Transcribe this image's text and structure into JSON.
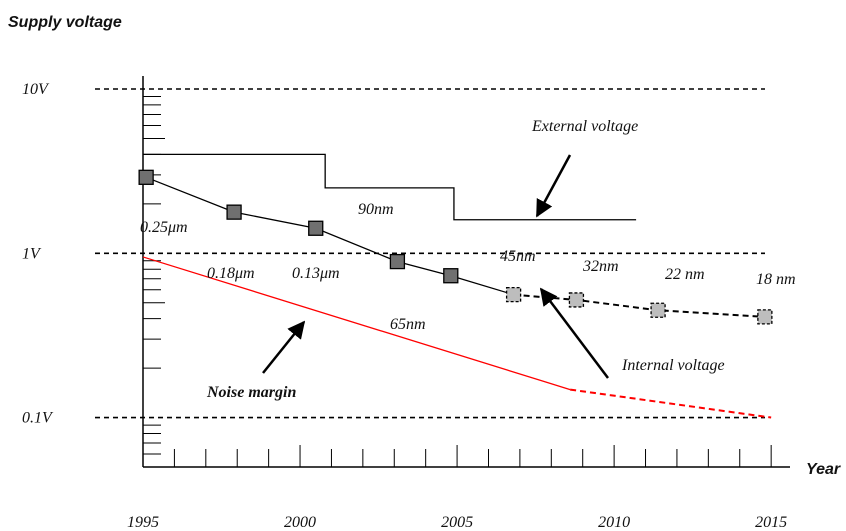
{
  "chart_data": {
    "type": "line",
    "title": "Supply voltage",
    "xlabel": "Year",
    "log_y": true,
    "xlim": [
      1995,
      2015.6
    ],
    "ylim": [
      0.05,
      12
    ],
    "xticks": [
      1995,
      2000,
      2005,
      2010,
      2015
    ],
    "yticks": [
      {
        "value": 0.1,
        "label": "0.1V"
      },
      {
        "value": 1,
        "label": "1V"
      },
      {
        "value": 10,
        "label": "10V"
      }
    ],
    "grid": true,
    "series": [
      {
        "name": "External voltage",
        "color": "#000000",
        "x": [
          1995,
          2000.8,
          2000.8,
          2004.9,
          2004.9,
          2010.7
        ],
        "values": [
          4,
          4,
          2.5,
          2.5,
          1.6,
          1.6
        ]
      },
      {
        "name": "Internal voltage",
        "color": "#000000",
        "markers": true,
        "dashed_from": 5,
        "marker_colors": [
          "#707070",
          "#707070",
          "#707070",
          "#707070",
          "#707070",
          "#bdbdbd",
          "#bdbdbd",
          "#bdbdbd",
          "#bdbdbd"
        ],
        "x": [
          1995.1,
          1997.9,
          2000.5,
          2003.1,
          2004.8,
          2006.8,
          2008.8,
          2011.4,
          2014.8
        ],
        "values": [
          2.9,
          1.78,
          1.42,
          0.89,
          0.73,
          0.56,
          0.52,
          0.45,
          0.41
        ]
      },
      {
        "name": "Noise margin",
        "color": "#ff0000",
        "dashed_from": 1,
        "x": [
          1995,
          2008.6,
          2015
        ],
        "values": [
          0.95,
          0.148,
          0.1
        ]
      }
    ],
    "annotations": [
      "0.25μm",
      "0.18μm",
      "0.13μm",
      "90nm",
      "45nm",
      "32nm",
      "22 nm",
      "18 nm",
      "65nm"
    ]
  }
}
